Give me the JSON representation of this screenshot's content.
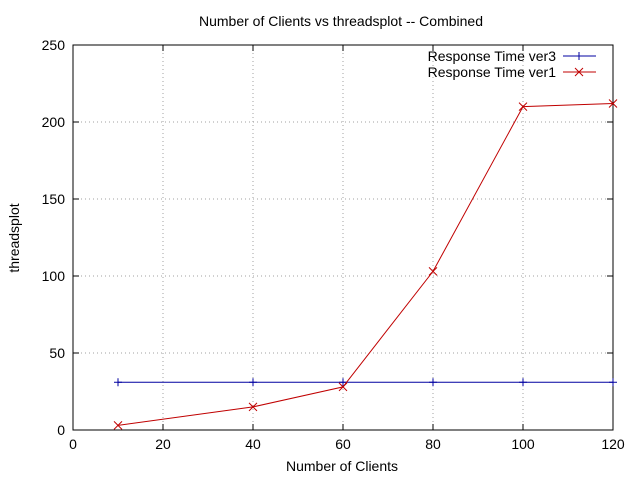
{
  "chart_data": {
    "type": "line",
    "title": "Number of Clients vs threadsplot -- Combined",
    "xlabel": "Number of Clients",
    "ylabel": "threadsplot",
    "xlim": [
      0,
      120
    ],
    "ylim": [
      0,
      250
    ],
    "xticks": [
      0,
      20,
      40,
      60,
      80,
      100,
      120
    ],
    "yticks": [
      0,
      50,
      100,
      150,
      200,
      250
    ],
    "grid": true,
    "legend_position": "top-right",
    "series": [
      {
        "name": "Response Time ver3",
        "color": "#0000a0",
        "marker": "plus",
        "x": [
          10,
          40,
          60,
          80,
          100,
          120
        ],
        "y": [
          31,
          31,
          31,
          31,
          31,
          31
        ]
      },
      {
        "name": "Response Time ver1",
        "color": "#c00000",
        "marker": "cross",
        "x": [
          10,
          40,
          60,
          80,
          100,
          120
        ],
        "y": [
          3,
          15,
          28,
          103,
          210,
          212
        ]
      }
    ]
  }
}
